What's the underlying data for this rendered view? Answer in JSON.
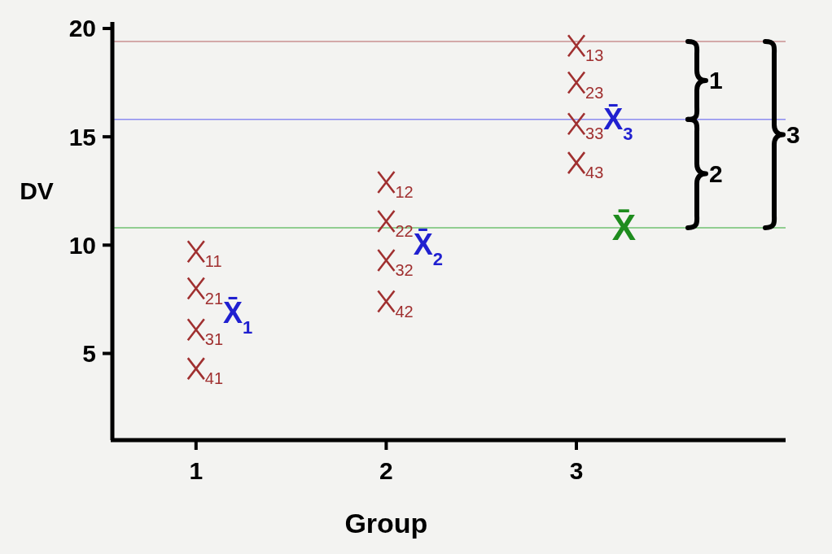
{
  "chart_data": {
    "type": "scatter",
    "xlabel": "Group",
    "ylabel": "DV",
    "xlim": [
      0.56,
      4.1
    ],
    "xticks": [
      1,
      2,
      3
    ],
    "ylim": [
      1,
      20.3
    ],
    "yticks": [
      5,
      10,
      15,
      20
    ],
    "grid": false,
    "marker": "cross",
    "series": [
      {
        "color": "#a03030",
        "x": [
          1,
          1,
          1,
          1,
          2,
          2,
          2,
          2,
          3,
          3,
          3,
          3
        ],
        "values": [
          9.7,
          8.0,
          6.1,
          4.3,
          12.9,
          11.1,
          9.3,
          7.4,
          19.2,
          17.5,
          15.6,
          13.8
        ]
      }
    ],
    "ref_lines": [
      {
        "axis": "y",
        "value": 19.4,
        "color": "#c89090"
      },
      {
        "axis": "y",
        "value": 15.8,
        "color": "#8c8cf0"
      },
      {
        "axis": "y",
        "value": 10.8,
        "color": "#70c070"
      }
    ],
    "annotations": [
      {
        "text": "$_{11}$",
        "x": 1,
        "y": 9.7
      },
      {
        "text": "$_{21}$",
        "x": 1,
        "y": 8.0
      },
      {
        "text": "$_{31}$",
        "x": 1,
        "y": 6.1
      },
      {
        "text": "$_{41}$",
        "x": 1,
        "y": 4.3
      },
      {
        "text": "$_{12}$",
        "x": 2,
        "y": 12.9
      },
      {
        "text": "$_{22}$",
        "x": 2,
        "y": 11.1
      },
      {
        "text": "$_{32}$",
        "x": 2,
        "y": 9.3
      },
      {
        "text": "$_{42}$",
        "x": 2,
        "y": 7.4
      },
      {
        "text": "$_{13}$",
        "x": 3,
        "y": 19.2
      },
      {
        "text": "$_{23}$",
        "x": 3,
        "y": 17.5
      },
      {
        "text": "$_{33}$",
        "x": 3,
        "y": 15.6
      },
      {
        "text": "$_{43}$",
        "x": 3,
        "y": 13.8
      },
      {
        "text": "X̄$_{3}$",
        "x": 3.22,
        "y": 15.8
      },
      {
        "text": "X̄",
        "x": 3.25,
        "y": 10.8
      },
      "X̄$_{1}$",
      "X̄$_{2}$",
      "1",
      "2",
      "3"
    ]
  }
}
